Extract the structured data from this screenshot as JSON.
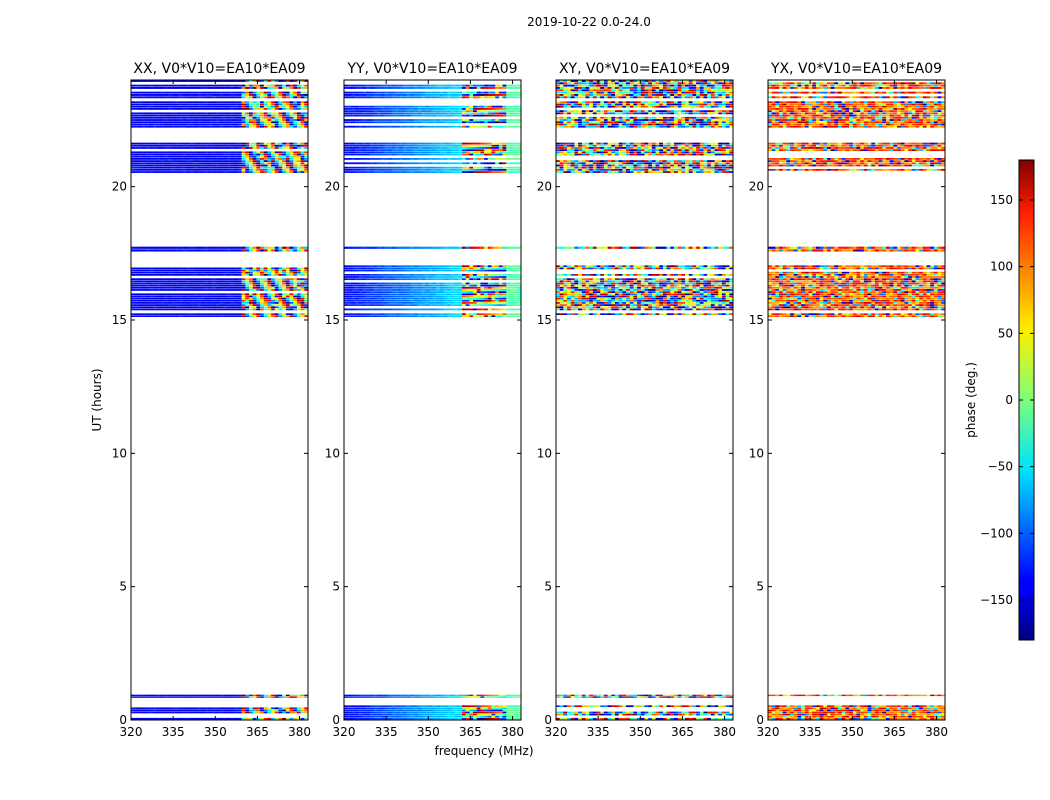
{
  "suptitle": "2019-10-22 0.0-24.0",
  "chart_data": {
    "type": "heatmap",
    "xlabel": "frequency (MHz)",
    "ylabel": "UT (hours)",
    "xlim": [
      320,
      383
    ],
    "ylim": [
      0,
      24
    ],
    "xticks": [
      320,
      335,
      350,
      365,
      380
    ],
    "yticks": [
      0,
      5,
      10,
      15,
      20
    ],
    "data_blocks_hours": [
      [
        0.0,
        0.55
      ],
      [
        0.82,
        0.95
      ],
      [
        15.1,
        15.25
      ],
      [
        15.35,
        17.05
      ],
      [
        17.55,
        17.75
      ],
      [
        20.5,
        21.65
      ],
      [
        22.2,
        23.2
      ],
      [
        23.3,
        24.0
      ]
    ],
    "panels": [
      {
        "title": "XX, V0*V10=EA10*EA09",
        "phase_style": "deep-blue plateau (~-150 deg) below 360 MHz, wrapping fringes above"
      },
      {
        "title": "YY, V0*V10=EA10*EA09",
        "phase_style": "blue-to-cyan gradient (~-150 to -60 deg) below 362 MHz, wrapping fringes above"
      },
      {
        "title": "XY, V0*V10=EA10*EA09",
        "phase_style": "noisy phase, all colors"
      },
      {
        "title": "YX, V0*V10=EA10*EA09",
        "phase_style": "noisy phase dominated by orange/red"
      }
    ],
    "colorbar": {
      "label": "phase (deg.)",
      "range": [
        -180,
        180
      ],
      "ticks": [
        -150,
        -100,
        -50,
        0,
        50,
        100,
        150
      ],
      "tick_labels": [
        "−150",
        "−100",
        "−50",
        "0",
        "50",
        "100",
        "150"
      ],
      "colormap": "jet"
    }
  }
}
